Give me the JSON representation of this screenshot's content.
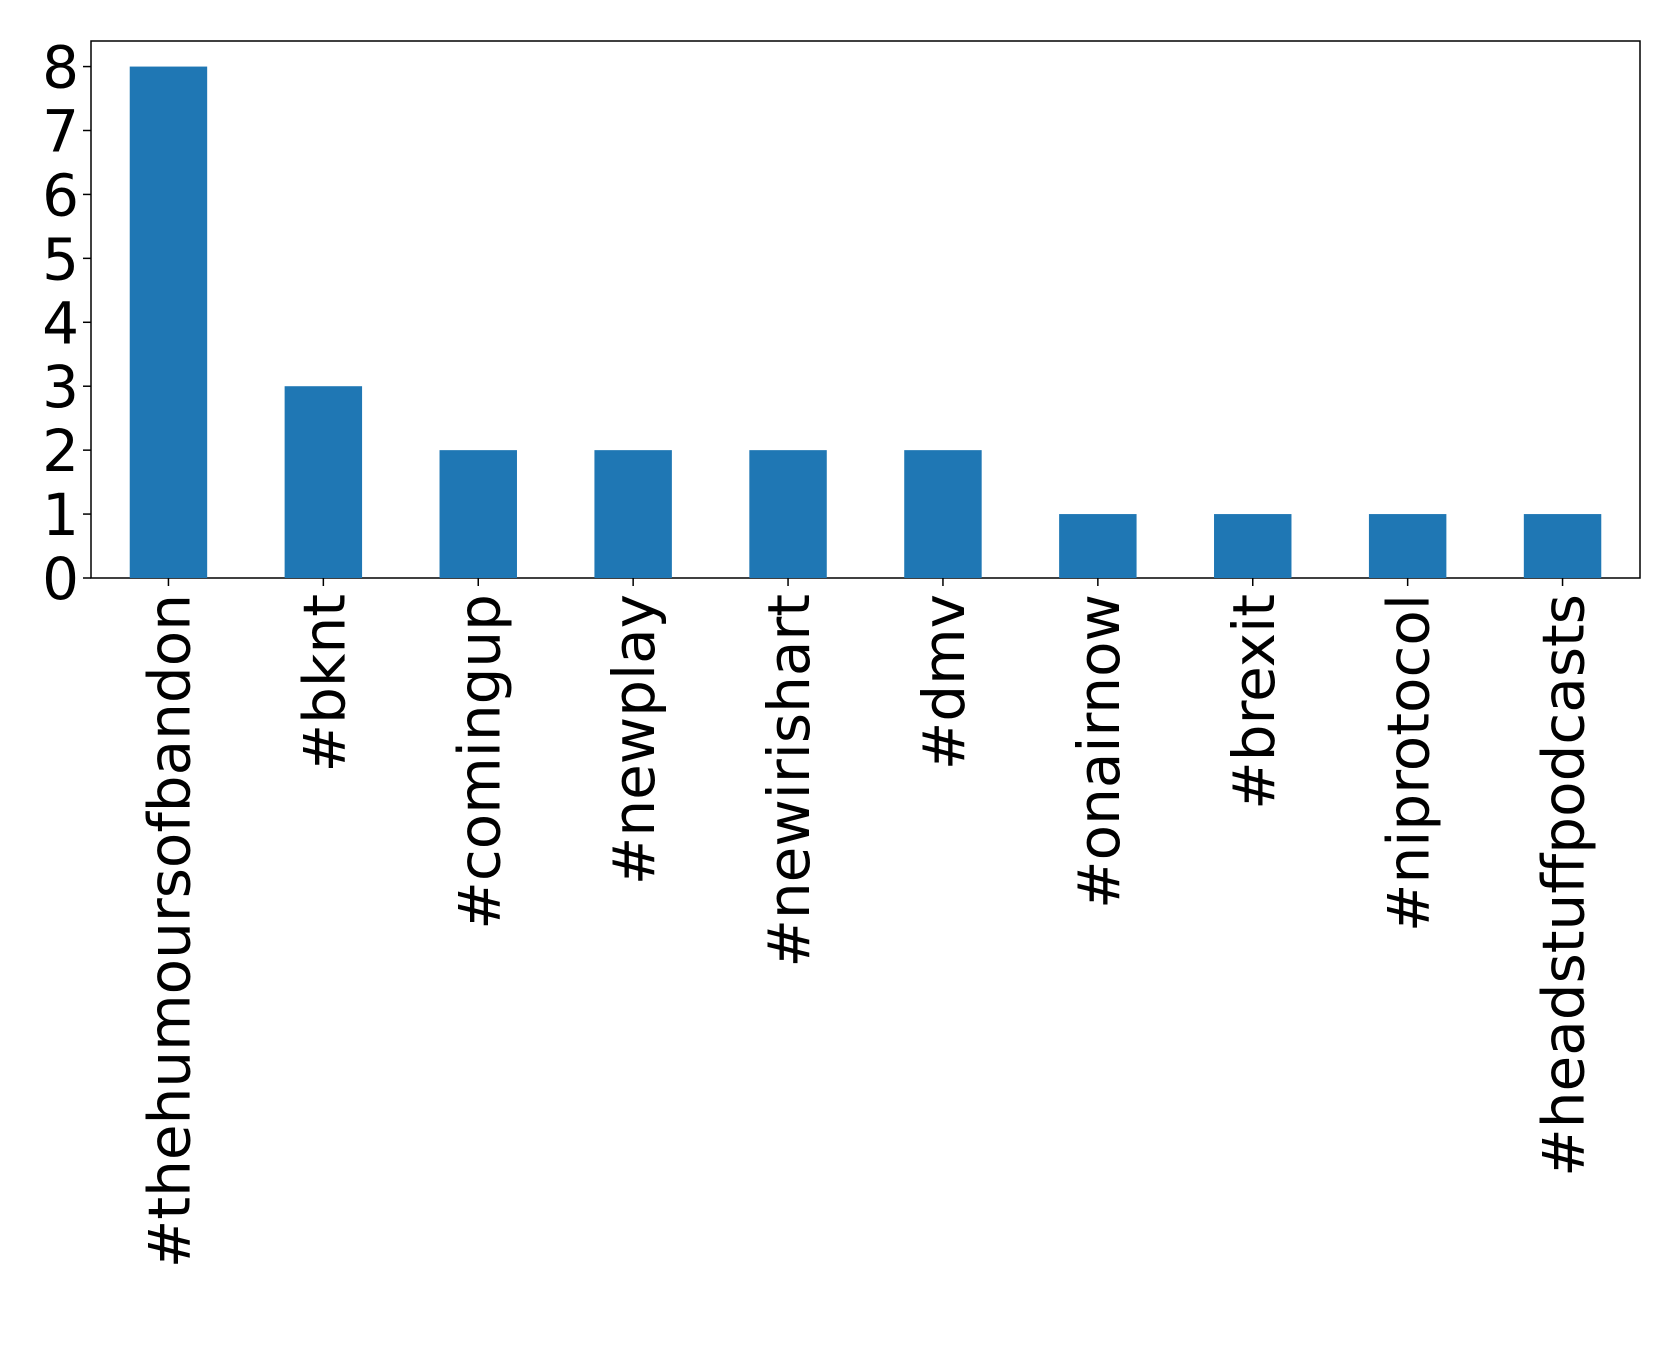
{
  "chart_data": {
    "type": "bar",
    "categories": [
      "#thehumoursofbandon",
      "#bknt",
      "#comingup",
      "#newplay",
      "#newirishart",
      "#dmv",
      "#onairnow",
      "#brexit",
      "#niprotocol",
      "#headstuffpodcasts"
    ],
    "values": [
      8,
      3,
      2,
      2,
      2,
      2,
      1,
      1,
      1,
      1
    ],
    "color": "#1f77b4",
    "ylim": [
      0,
      8.4
    ],
    "yticks": [
      0,
      1,
      2,
      3,
      4,
      5,
      6,
      7,
      8
    ],
    "grid": false
  }
}
